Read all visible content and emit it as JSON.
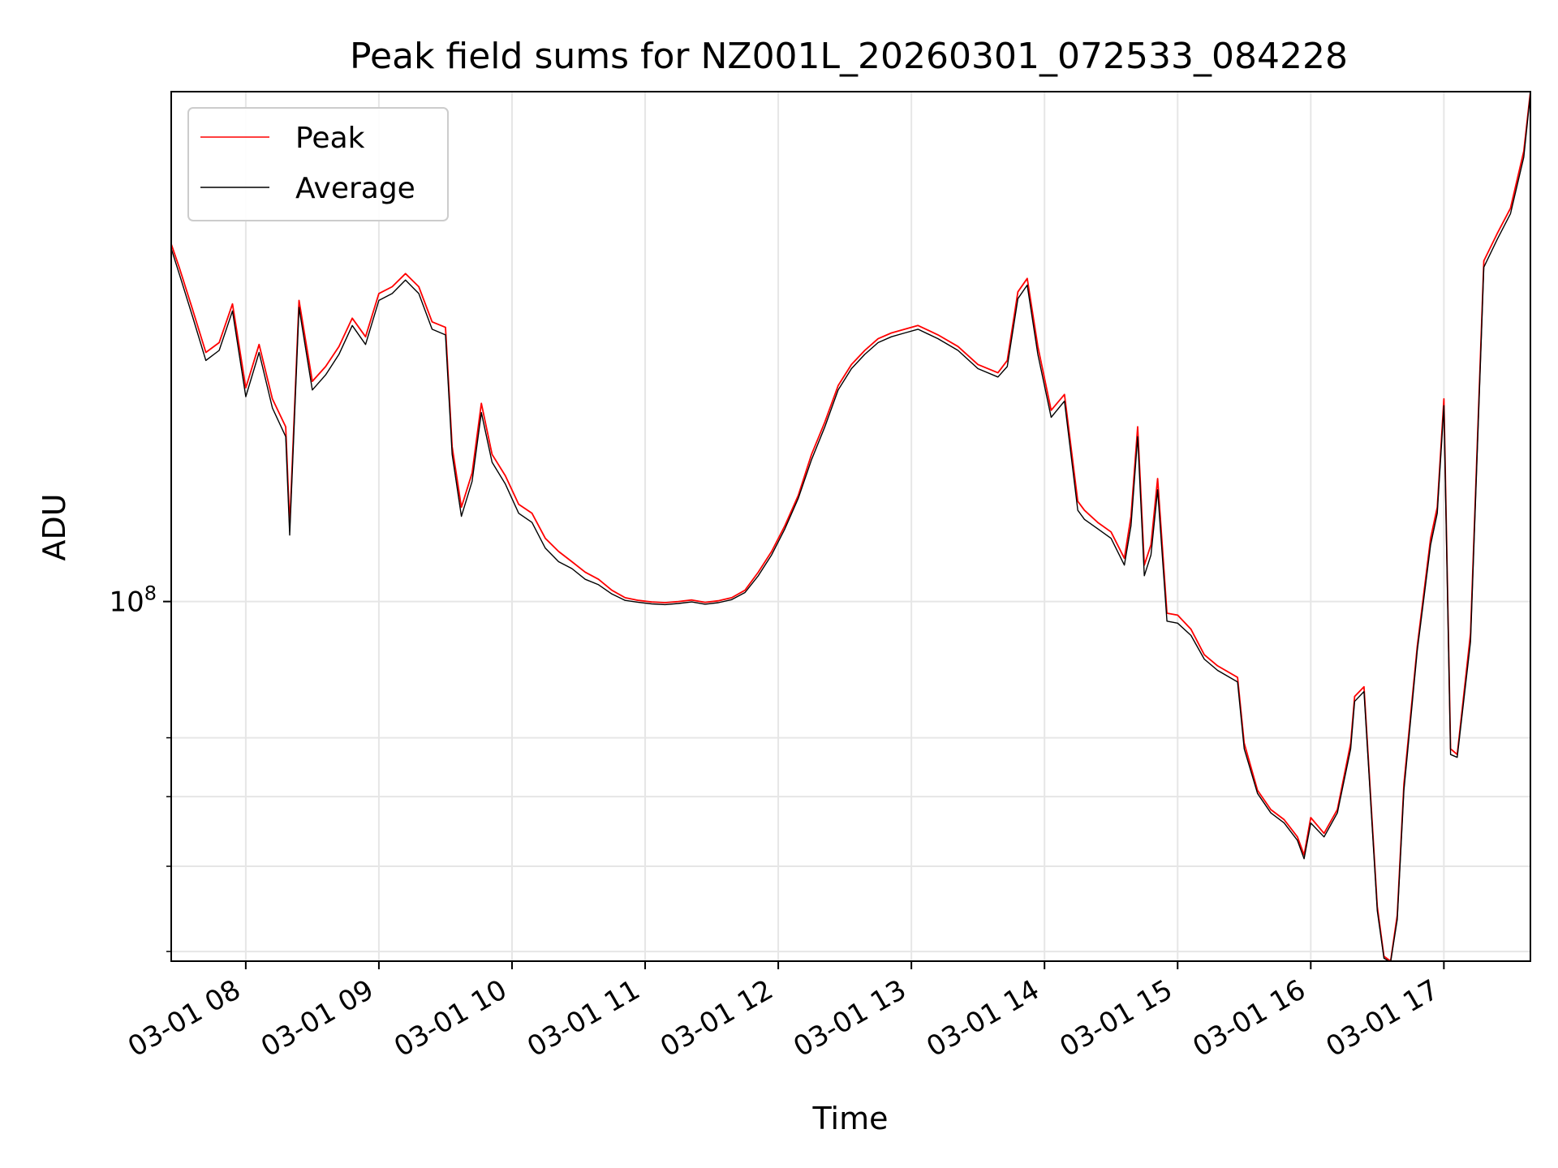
{
  "chart_data": {
    "type": "line",
    "title": "Peak field sums for NZ001L_20260301_072533_084228",
    "xlabel": "Time",
    "ylabel": "ADU",
    "x_unit": "time of day, 2026-03-01 (hours)",
    "xlim": [
      7.44,
      17.65
    ],
    "ylim": [
      39000000,
      380000000
    ],
    "y_scale": "log",
    "x_ticks": [
      {
        "value": 8,
        "label": "03-01 08"
      },
      {
        "value": 9,
        "label": "03-01 09"
      },
      {
        "value": 10,
        "label": "03-01 10"
      },
      {
        "value": 11,
        "label": "03-01 11"
      },
      {
        "value": 12,
        "label": "03-01 12"
      },
      {
        "value": 13,
        "label": "03-01 13"
      },
      {
        "value": 14,
        "label": "03-01 14"
      },
      {
        "value": 15,
        "label": "03-01 15"
      },
      {
        "value": 16,
        "label": "03-01 16"
      },
      {
        "value": 17,
        "label": "03-01 17"
      }
    ],
    "y_major_ticks": [
      {
        "value": 100000000,
        "label_base": "10",
        "label_exp": "8"
      }
    ],
    "y_minor_ticks": [
      40000000,
      50000000,
      60000000,
      70000000
    ],
    "grid": true,
    "legend_position": "top-left",
    "series": [
      {
        "name": "Peak",
        "color": "#ff0000",
        "x": [
          7.44,
          7.5,
          7.6,
          7.7,
          7.8,
          7.9,
          8.0,
          8.1,
          8.2,
          8.3,
          8.33,
          8.4,
          8.5,
          8.6,
          8.7,
          8.8,
          8.9,
          9.0,
          9.1,
          9.2,
          9.3,
          9.4,
          9.5,
          9.55,
          9.62,
          9.7,
          9.77,
          9.85,
          9.95,
          10.05,
          10.15,
          10.25,
          10.35,
          10.45,
          10.55,
          10.65,
          10.75,
          10.85,
          10.95,
          11.05,
          11.15,
          11.25,
          11.35,
          11.45,
          11.55,
          11.65,
          11.75,
          11.85,
          11.95,
          12.05,
          12.15,
          12.25,
          12.35,
          12.45,
          12.55,
          12.65,
          12.75,
          12.85,
          12.95,
          13.05,
          13.2,
          13.35,
          13.5,
          13.65,
          13.72,
          13.8,
          13.87,
          13.95,
          14.05,
          14.15,
          14.25,
          14.3,
          14.4,
          14.5,
          14.6,
          14.65,
          14.7,
          14.75,
          14.8,
          14.85,
          14.92,
          15.0,
          15.1,
          15.2,
          15.3,
          15.45,
          15.5,
          15.6,
          15.7,
          15.8,
          15.9,
          15.95,
          16.0,
          16.1,
          16.2,
          16.3,
          16.33,
          16.4,
          16.5,
          16.55,
          16.6,
          16.65,
          16.7,
          16.8,
          16.9,
          16.95,
          17.0,
          17.05,
          17.1,
          17.2,
          17.3,
          17.4,
          17.5,
          17.6,
          17.65
        ],
        "y": [
          255000000,
          240000000,
          215000000,
          192000000,
          197000000,
          218000000,
          175000000,
          196000000,
          170000000,
          158000000,
          122000000,
          220000000,
          178000000,
          185000000,
          195000000,
          210000000,
          200000000,
          224000000,
          228000000,
          236000000,
          228000000,
          208000000,
          205000000,
          150000000,
          128000000,
          140000000,
          168000000,
          147000000,
          139000000,
          129000000,
          126000000,
          118000000,
          114000000,
          111000000,
          108000000,
          106000000,
          103000000,
          101000000,
          100300000,
          99900000,
          99700000,
          100000000,
          100400000,
          99800000,
          100200000,
          101000000,
          103000000,
          108000000,
          114000000,
          122000000,
          132000000,
          147000000,
          160000000,
          176000000,
          186000000,
          193000000,
          199000000,
          202000000,
          204000000,
          206000000,
          201000000,
          195000000,
          186000000,
          182000000,
          188000000,
          225000000,
          233000000,
          195000000,
          165000000,
          172000000,
          130000000,
          127000000,
          123000000,
          120000000,
          112000000,
          125000000,
          158000000,
          110000000,
          116000000,
          138000000,
          97000000,
          96500000,
          93000000,
          87000000,
          84500000,
          82000000,
          69000000,
          61000000,
          58000000,
          56500000,
          54000000,
          51500000,
          56800000,
          54500000,
          58000000,
          69000000,
          78000000,
          80000000,
          45000000,
          39500000,
          39000000,
          44000000,
          62000000,
          89000000,
          118000000,
          128000000,
          170000000,
          68000000,
          67000000,
          92000000,
          244000000,
          262000000,
          280000000,
          325000000,
          380000000
        ]
      },
      {
        "name": "Average",
        "color": "#000000",
        "x": [
          7.44,
          7.5,
          7.6,
          7.7,
          7.8,
          7.9,
          8.0,
          8.1,
          8.2,
          8.3,
          8.33,
          8.4,
          8.5,
          8.6,
          8.7,
          8.8,
          8.9,
          9.0,
          9.1,
          9.2,
          9.3,
          9.4,
          9.5,
          9.55,
          9.62,
          9.7,
          9.77,
          9.85,
          9.95,
          10.05,
          10.15,
          10.25,
          10.35,
          10.45,
          10.55,
          10.65,
          10.75,
          10.85,
          10.95,
          11.05,
          11.15,
          11.25,
          11.35,
          11.45,
          11.55,
          11.65,
          11.75,
          11.85,
          11.95,
          12.05,
          12.15,
          12.25,
          12.35,
          12.45,
          12.55,
          12.65,
          12.75,
          12.85,
          12.95,
          13.05,
          13.2,
          13.35,
          13.5,
          13.65,
          13.72,
          13.8,
          13.87,
          13.95,
          14.05,
          14.15,
          14.25,
          14.3,
          14.4,
          14.5,
          14.6,
          14.65,
          14.7,
          14.75,
          14.8,
          14.85,
          14.92,
          15.0,
          15.1,
          15.2,
          15.3,
          15.45,
          15.5,
          15.6,
          15.7,
          15.8,
          15.9,
          15.95,
          16.0,
          16.1,
          16.2,
          16.3,
          16.33,
          16.4,
          16.5,
          16.55,
          16.6,
          16.65,
          16.7,
          16.8,
          16.9,
          16.95,
          17.0,
          17.05,
          17.1,
          17.2,
          17.3,
          17.4,
          17.5,
          17.6,
          17.65
        ],
        "y": [
          252000000,
          236000000,
          211000000,
          188000000,
          193000000,
          214000000,
          171000000,
          192000000,
          166000000,
          154000000,
          119000000,
          216000000,
          174000000,
          181000000,
          191000000,
          206000000,
          196000000,
          220000000,
          224000000,
          232000000,
          224000000,
          204000000,
          201000000,
          147000000,
          125000000,
          137000000,
          164000000,
          144000000,
          136000000,
          126000000,
          123000000,
          115000000,
          111000000,
          109000000,
          106000000,
          104500000,
          102000000,
          100300000,
          99800000,
          99400000,
          99200000,
          99500000,
          99900000,
          99300000,
          99700000,
          100500000,
          102400000,
          107000000,
          113000000,
          121000000,
          131000000,
          145000000,
          158000000,
          174000000,
          184000000,
          191000000,
          197000000,
          200000000,
          202000000,
          204000000,
          199000000,
          193000000,
          184000000,
          180000000,
          185000000,
          221000000,
          229000000,
          191000000,
          162000000,
          169000000,
          127000000,
          124000000,
          121000000,
          118000000,
          110000000,
          122000000,
          154000000,
          107000000,
          113000000,
          134000000,
          95000000,
          94500000,
          91500000,
          86000000,
          83500000,
          81000000,
          68000000,
          60500000,
          57500000,
          56000000,
          53500000,
          51000000,
          56000000,
          54000000,
          57500000,
          68000000,
          77000000,
          79000000,
          44500000,
          39300000,
          38900000,
          43500000,
          61000000,
          88000000,
          116000000,
          126000000,
          167000000,
          67000000,
          66500000,
          90000000,
          240000000,
          258000000,
          276000000,
          320000000,
          378000000
        ]
      }
    ]
  }
}
